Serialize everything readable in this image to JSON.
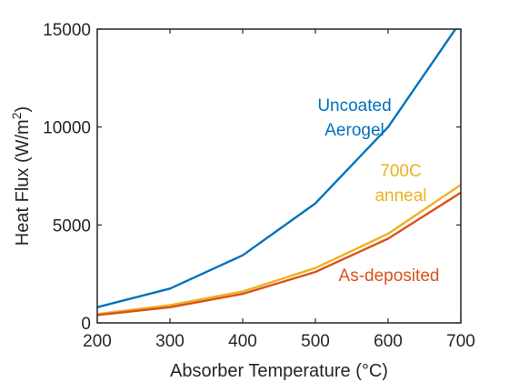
{
  "chart_data": {
    "type": "line",
    "xlabel": "Absorber Temperature (°C)",
    "ylabel_main": "Heat Flux (W/m",
    "ylabel_sup": "2",
    "ylabel_close": ")",
    "xlim": [
      200,
      700
    ],
    "ylim": [
      0,
      15000
    ],
    "xticks": [
      200,
      300,
      400,
      500,
      600,
      700
    ],
    "yticks": [
      0,
      5000,
      10000,
      15000
    ],
    "grid": false,
    "legend": "none",
    "x": [
      200,
      300,
      400,
      500,
      600,
      700
    ],
    "series": [
      {
        "name_lines": [
          "Uncoated",
          "Aerogel"
        ],
        "color": "#0072BD",
        "values": [
          800,
          1750,
          3450,
          6100,
          10000,
          15400
        ]
      },
      {
        "name_lines": [
          "700C",
          "anneal"
        ],
        "color": "#EDB120",
        "values": [
          450,
          900,
          1600,
          2800,
          4550,
          7050
        ]
      },
      {
        "name_lines": [
          "As-deposited"
        ],
        "color": "#D95319",
        "values": [
          400,
          800,
          1480,
          2600,
          4300,
          6650
        ]
      }
    ]
  }
}
